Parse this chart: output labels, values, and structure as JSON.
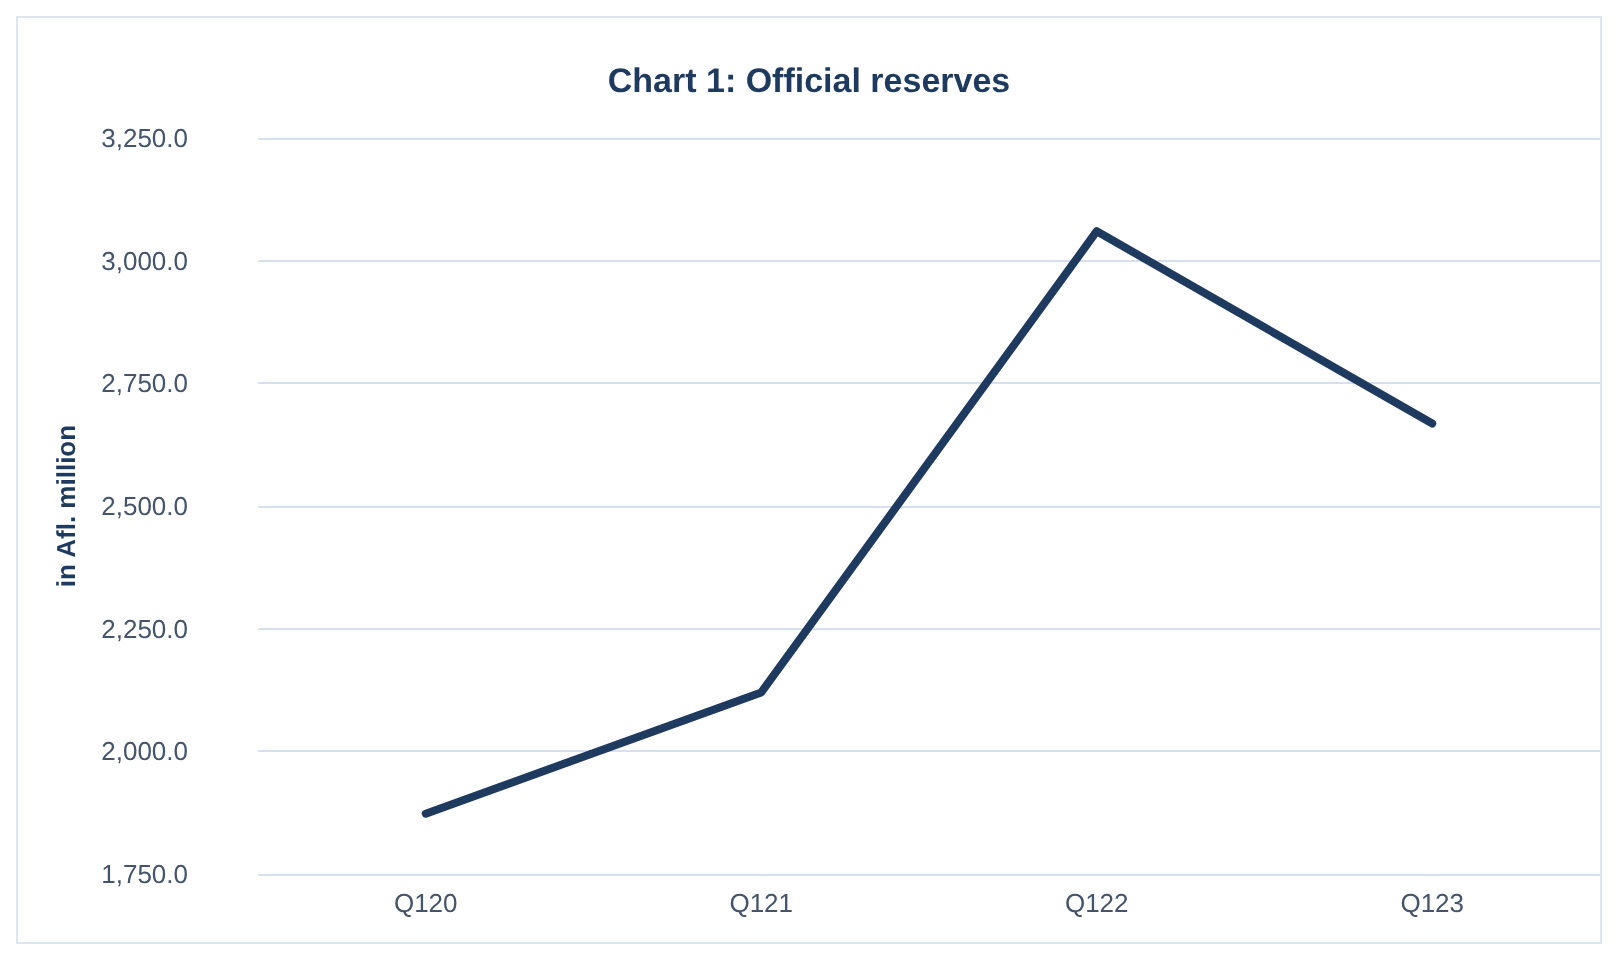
{
  "chart_data": {
    "type": "line",
    "title": "Chart 1: Official reserves",
    "ylabel": "in Afl. million",
    "categories": [
      "Q120",
      "Q121",
      "Q122",
      "Q123"
    ],
    "series": [
      {
        "color": "#1f3a5f",
        "values": [
          1873,
          2120,
          3060,
          2668
        ]
      }
    ],
    "ylim": [
      1750,
      3250
    ],
    "yticks": [
      {
        "value": 1750,
        "label": "1,750.0"
      },
      {
        "value": 2000,
        "label": "2,000.0"
      },
      {
        "value": 2250,
        "label": "2,250.0"
      },
      {
        "value": 2500,
        "label": "2,500.0"
      },
      {
        "value": 2750,
        "label": "2,750.0"
      },
      {
        "value": 3000,
        "label": "3,000.0"
      },
      {
        "value": 3250,
        "label": "3,250.0"
      }
    ],
    "grid": "y",
    "marker": "none",
    "line_style": "solid"
  }
}
